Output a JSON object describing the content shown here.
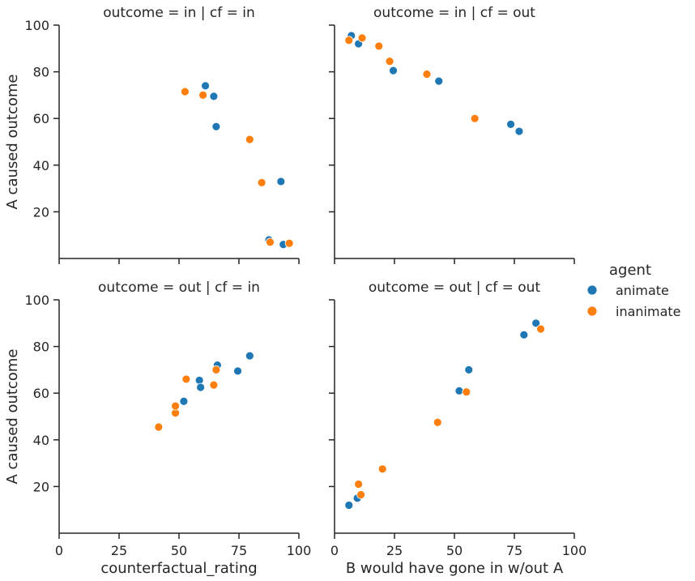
{
  "colors": {
    "animate": "#1f77b4",
    "inanimate": "#ff7f0e",
    "axis": "#262626"
  },
  "chart_data": {
    "type": "scatter",
    "xlim": [
      0,
      100
    ],
    "ylim": [
      0,
      100
    ],
    "xticks": [
      0,
      25,
      50,
      75,
      100
    ],
    "yticks": [
      20,
      40,
      60,
      80,
      100
    ],
    "legend": {
      "title": "agent",
      "entries": [
        "animate",
        "inanimate"
      ],
      "placement": "right"
    },
    "panels": [
      {
        "title": "outcome = in | cf = in",
        "ylabel": "A caused outcome",
        "xlabel": "",
        "series": [
          {
            "name": "animate",
            "points": [
              [
                61,
                74
              ],
              [
                64.5,
                69.5
              ],
              [
                65.5,
                56.5
              ],
              [
                92.5,
                33
              ],
              [
                87.5,
                8
              ],
              [
                93.5,
                6
              ]
            ]
          },
          {
            "name": "inanimate",
            "points": [
              [
                52.5,
                71.5
              ],
              [
                60,
                70
              ],
              [
                79.5,
                51
              ],
              [
                84.5,
                32.5
              ],
              [
                88,
                7
              ],
              [
                96,
                6.5
              ]
            ]
          }
        ]
      },
      {
        "title": "outcome = in | cf = out",
        "ylabel": "",
        "xlabel": "",
        "series": [
          {
            "name": "animate",
            "points": [
              [
                7,
                95.5
              ],
              [
                10,
                92
              ],
              [
                24.5,
                80.5
              ],
              [
                43.5,
                76
              ],
              [
                73.5,
                57.5
              ],
              [
                77,
                54.5
              ]
            ]
          },
          {
            "name": "inanimate",
            "points": [
              [
                6,
                93.5
              ],
              [
                11.5,
                94.5
              ],
              [
                18.5,
                91
              ],
              [
                23,
                84.5
              ],
              [
                38.5,
                79
              ],
              [
                58.5,
                60
              ]
            ]
          }
        ]
      },
      {
        "title": "outcome = out | cf = in",
        "ylabel": "A caused outcome",
        "xlabel": "counterfactual_rating",
        "series": [
          {
            "name": "animate",
            "points": [
              [
                52,
                56.5
              ],
              [
                58.5,
                65.5
              ],
              [
                59,
                62.5
              ],
              [
                66,
                72
              ],
              [
                74.5,
                69.5
              ],
              [
                79.5,
                76
              ]
            ]
          },
          {
            "name": "inanimate",
            "points": [
              [
                41.5,
                45.5
              ],
              [
                48.5,
                51.5
              ],
              [
                48.5,
                54.5
              ],
              [
                53,
                66
              ],
              [
                64.5,
                63.5
              ],
              [
                65.5,
                70
              ]
            ]
          }
        ]
      },
      {
        "title": "outcome = out | cf = out",
        "ylabel": "",
        "xlabel": "B would have gone in w/out A",
        "series": [
          {
            "name": "animate",
            "points": [
              [
                6,
                12
              ],
              [
                9.5,
                15
              ],
              [
                52,
                61
              ],
              [
                56,
                70
              ],
              [
                79,
                85
              ],
              [
                84,
                90
              ]
            ]
          },
          {
            "name": "inanimate",
            "points": [
              [
                10,
                21
              ],
              [
                11,
                16.5
              ],
              [
                20,
                27.5
              ],
              [
                43,
                47.5
              ],
              [
                55,
                60.5
              ],
              [
                86,
                87.5
              ]
            ]
          }
        ]
      }
    ]
  }
}
